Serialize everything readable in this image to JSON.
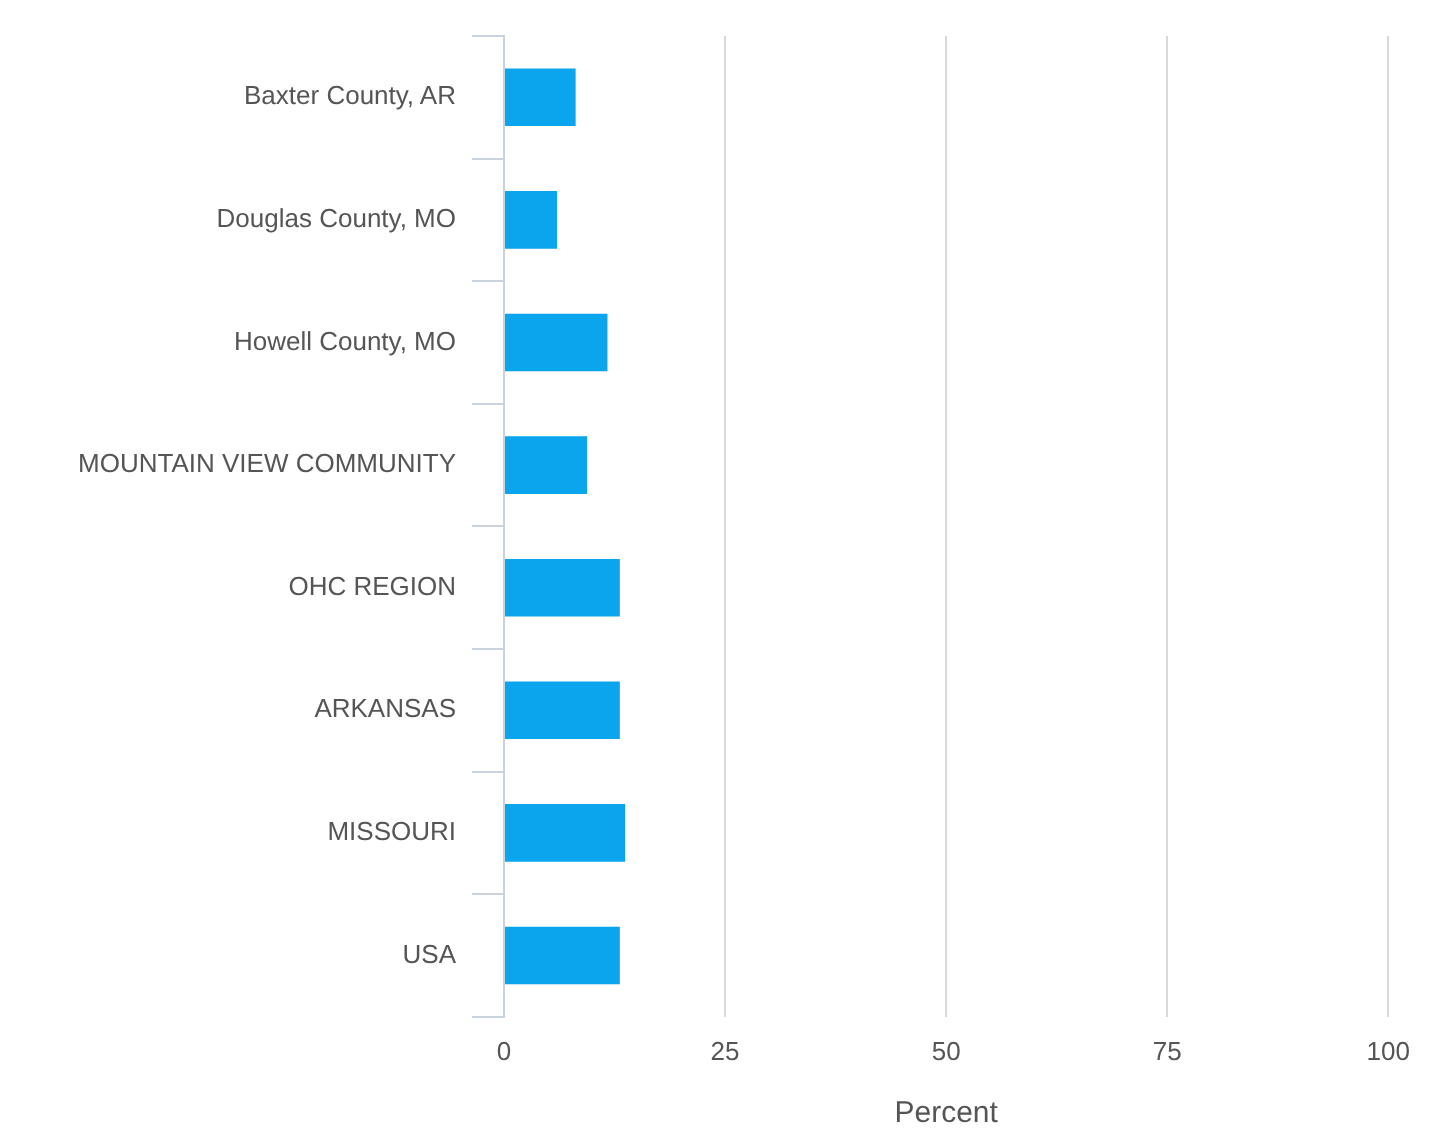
{
  "chart_data": {
    "type": "bar",
    "orientation": "horizontal",
    "xlabel": "Percent",
    "categories": [
      "Baxter County, AR",
      "Douglas County, MO",
      "Howell County, MO",
      "MOUNTAIN VIEW COMMUNITY",
      "OHC REGION",
      "ARKANSAS",
      "MISSOURI",
      "USA"
    ],
    "values": [
      8.1,
      6.0,
      11.7,
      9.4,
      13.1,
      13.1,
      13.7,
      13.1
    ],
    "color": "#0aa5ec",
    "xlim": [
      0,
      100
    ],
    "xticks": [
      0,
      25,
      50,
      75,
      100
    ],
    "grid": "x",
    "legend": false
  }
}
